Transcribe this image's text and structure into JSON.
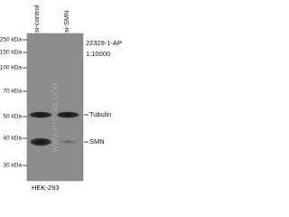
{
  "lanes": [
    "si-control",
    "si-SMN"
  ],
  "antibody": {
    "catalog": "22329-1-AP",
    "dilution": "1:10000"
  },
  "markers": [
    "250 kDa",
    "150 kDa",
    "100 kDa",
    "70 kDa",
    "50 kDa",
    "40 kDa",
    "30 kDa"
  ],
  "bands": [
    "Tubulin",
    "SMN"
  ],
  "cell_line": "HEK-293",
  "watermark": "WWW.PTGLAB.COM"
}
